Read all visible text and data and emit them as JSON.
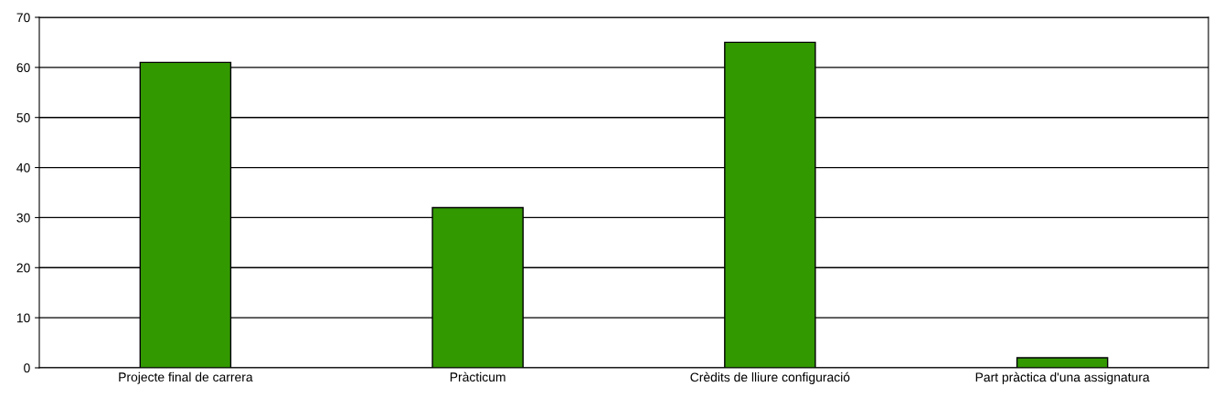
{
  "chart_data": {
    "type": "bar",
    "categories": [
      "Projecte final de carrera",
      "Pràcticum",
      "Crèdits de lliure configuració",
      "Part pràctica d'una assignatura"
    ],
    "values": [
      61,
      32,
      65,
      2
    ],
    "color": "#339900",
    "ylim": [
      0,
      70
    ],
    "yticks": [
      0,
      10,
      20,
      30,
      40,
      50,
      60,
      70
    ],
    "grid": "y"
  }
}
